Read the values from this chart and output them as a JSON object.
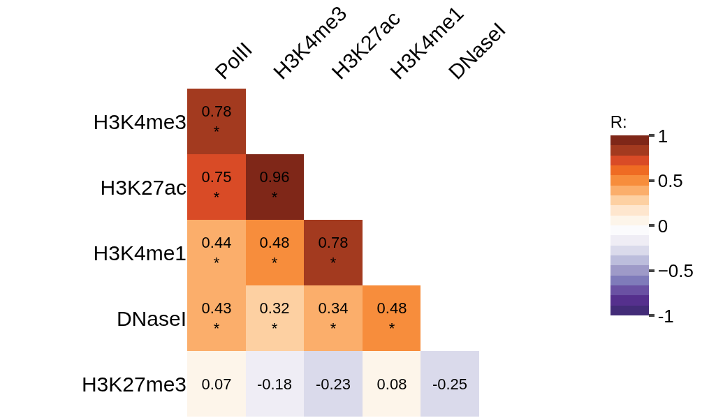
{
  "chart_data": {
    "type": "heatmap",
    "categories": [
      "PolII",
      "H3K4me3",
      "H3K27ac",
      "H3K4me1",
      "DNaseI"
    ],
    "y_categories": [
      "H3K4me3",
      "H3K27ac",
      "H3K4me1",
      "DNaseI",
      "H3K27me3"
    ],
    "cells": [
      [
        0.78,
        null,
        null,
        null,
        null
      ],
      [
        0.75,
        0.96,
        null,
        null,
        null
      ],
      [
        0.44,
        0.48,
        0.78,
        null,
        null
      ],
      [
        0.43,
        0.32,
        0.34,
        0.48,
        null
      ],
      [
        0.07,
        -0.18,
        -0.23,
        0.08,
        -0.25
      ]
    ],
    "cell_labels": [
      [
        "0.78\n*",
        null,
        null,
        null,
        null
      ],
      [
        "0.75\n*",
        "0.96\n*",
        null,
        null,
        null
      ],
      [
        "0.44\n*",
        "0.48\n*",
        "0.78\n*",
        null,
        null
      ],
      [
        "0.43\n*",
        "0.32\n*",
        "0.34\n*",
        "0.48\n*",
        null
      ],
      [
        "0.07",
        "-0.18",
        "-0.23",
        "0.08",
        "-0.25"
      ]
    ],
    "clabel": "R:",
    "clim": [
      -1,
      1
    ],
    "cticks": [
      1,
      0.5,
      0,
      {
        "value": -0.5,
        "label": "−0.5"
      },
      -1
    ],
    "colors": [
      "#432c78",
      "#55308d",
      "#6a51a3",
      "#7f7bba",
      "#9e9ac8",
      "#bcbddc",
      "#dadaeb",
      "#efedf5",
      "#fbfbfd",
      "#fdf5ea",
      "#fee6ce",
      "#fdd0a2",
      "#fbae6b",
      "#f78d3c",
      "#ef6b23",
      "#d94b26",
      "#a33a1f",
      "#7f2718"
    ]
  }
}
